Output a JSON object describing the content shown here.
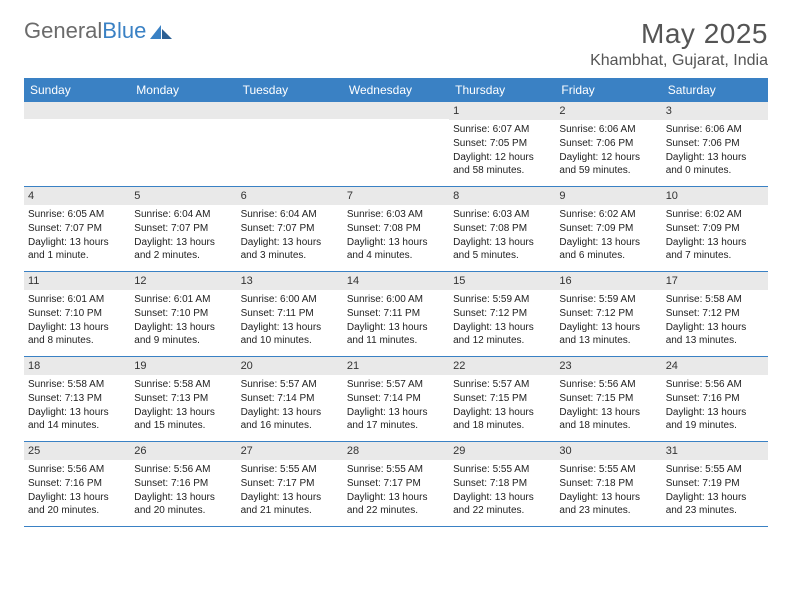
{
  "brand": {
    "part1": "General",
    "part2": "Blue"
  },
  "title": "May 2025",
  "location": "Khambhat, Gujarat, India",
  "colors": {
    "header_bg": "#3a81c4",
    "daynum_bg": "#e9e9e9",
    "rule": "#3a81c4",
    "text": "#222222",
    "title": "#555555"
  },
  "day_names": [
    "Sunday",
    "Monday",
    "Tuesday",
    "Wednesday",
    "Thursday",
    "Friday",
    "Saturday"
  ],
  "weeks": [
    [
      {
        "n": "",
        "sr": "",
        "ss": "",
        "dl": ""
      },
      {
        "n": "",
        "sr": "",
        "ss": "",
        "dl": ""
      },
      {
        "n": "",
        "sr": "",
        "ss": "",
        "dl": ""
      },
      {
        "n": "",
        "sr": "",
        "ss": "",
        "dl": ""
      },
      {
        "n": "1",
        "sr": "Sunrise: 6:07 AM",
        "ss": "Sunset: 7:05 PM",
        "dl": "Daylight: 12 hours and 58 minutes."
      },
      {
        "n": "2",
        "sr": "Sunrise: 6:06 AM",
        "ss": "Sunset: 7:06 PM",
        "dl": "Daylight: 12 hours and 59 minutes."
      },
      {
        "n": "3",
        "sr": "Sunrise: 6:06 AM",
        "ss": "Sunset: 7:06 PM",
        "dl": "Daylight: 13 hours and 0 minutes."
      }
    ],
    [
      {
        "n": "4",
        "sr": "Sunrise: 6:05 AM",
        "ss": "Sunset: 7:07 PM",
        "dl": "Daylight: 13 hours and 1 minute."
      },
      {
        "n": "5",
        "sr": "Sunrise: 6:04 AM",
        "ss": "Sunset: 7:07 PM",
        "dl": "Daylight: 13 hours and 2 minutes."
      },
      {
        "n": "6",
        "sr": "Sunrise: 6:04 AM",
        "ss": "Sunset: 7:07 PM",
        "dl": "Daylight: 13 hours and 3 minutes."
      },
      {
        "n": "7",
        "sr": "Sunrise: 6:03 AM",
        "ss": "Sunset: 7:08 PM",
        "dl": "Daylight: 13 hours and 4 minutes."
      },
      {
        "n": "8",
        "sr": "Sunrise: 6:03 AM",
        "ss": "Sunset: 7:08 PM",
        "dl": "Daylight: 13 hours and 5 minutes."
      },
      {
        "n": "9",
        "sr": "Sunrise: 6:02 AM",
        "ss": "Sunset: 7:09 PM",
        "dl": "Daylight: 13 hours and 6 minutes."
      },
      {
        "n": "10",
        "sr": "Sunrise: 6:02 AM",
        "ss": "Sunset: 7:09 PM",
        "dl": "Daylight: 13 hours and 7 minutes."
      }
    ],
    [
      {
        "n": "11",
        "sr": "Sunrise: 6:01 AM",
        "ss": "Sunset: 7:10 PM",
        "dl": "Daylight: 13 hours and 8 minutes."
      },
      {
        "n": "12",
        "sr": "Sunrise: 6:01 AM",
        "ss": "Sunset: 7:10 PM",
        "dl": "Daylight: 13 hours and 9 minutes."
      },
      {
        "n": "13",
        "sr": "Sunrise: 6:00 AM",
        "ss": "Sunset: 7:11 PM",
        "dl": "Daylight: 13 hours and 10 minutes."
      },
      {
        "n": "14",
        "sr": "Sunrise: 6:00 AM",
        "ss": "Sunset: 7:11 PM",
        "dl": "Daylight: 13 hours and 11 minutes."
      },
      {
        "n": "15",
        "sr": "Sunrise: 5:59 AM",
        "ss": "Sunset: 7:12 PM",
        "dl": "Daylight: 13 hours and 12 minutes."
      },
      {
        "n": "16",
        "sr": "Sunrise: 5:59 AM",
        "ss": "Sunset: 7:12 PM",
        "dl": "Daylight: 13 hours and 13 minutes."
      },
      {
        "n": "17",
        "sr": "Sunrise: 5:58 AM",
        "ss": "Sunset: 7:12 PM",
        "dl": "Daylight: 13 hours and 13 minutes."
      }
    ],
    [
      {
        "n": "18",
        "sr": "Sunrise: 5:58 AM",
        "ss": "Sunset: 7:13 PM",
        "dl": "Daylight: 13 hours and 14 minutes."
      },
      {
        "n": "19",
        "sr": "Sunrise: 5:58 AM",
        "ss": "Sunset: 7:13 PM",
        "dl": "Daylight: 13 hours and 15 minutes."
      },
      {
        "n": "20",
        "sr": "Sunrise: 5:57 AM",
        "ss": "Sunset: 7:14 PM",
        "dl": "Daylight: 13 hours and 16 minutes."
      },
      {
        "n": "21",
        "sr": "Sunrise: 5:57 AM",
        "ss": "Sunset: 7:14 PM",
        "dl": "Daylight: 13 hours and 17 minutes."
      },
      {
        "n": "22",
        "sr": "Sunrise: 5:57 AM",
        "ss": "Sunset: 7:15 PM",
        "dl": "Daylight: 13 hours and 18 minutes."
      },
      {
        "n": "23",
        "sr": "Sunrise: 5:56 AM",
        "ss": "Sunset: 7:15 PM",
        "dl": "Daylight: 13 hours and 18 minutes."
      },
      {
        "n": "24",
        "sr": "Sunrise: 5:56 AM",
        "ss": "Sunset: 7:16 PM",
        "dl": "Daylight: 13 hours and 19 minutes."
      }
    ],
    [
      {
        "n": "25",
        "sr": "Sunrise: 5:56 AM",
        "ss": "Sunset: 7:16 PM",
        "dl": "Daylight: 13 hours and 20 minutes."
      },
      {
        "n": "26",
        "sr": "Sunrise: 5:56 AM",
        "ss": "Sunset: 7:16 PM",
        "dl": "Daylight: 13 hours and 20 minutes."
      },
      {
        "n": "27",
        "sr": "Sunrise: 5:55 AM",
        "ss": "Sunset: 7:17 PM",
        "dl": "Daylight: 13 hours and 21 minutes."
      },
      {
        "n": "28",
        "sr": "Sunrise: 5:55 AM",
        "ss": "Sunset: 7:17 PM",
        "dl": "Daylight: 13 hours and 22 minutes."
      },
      {
        "n": "29",
        "sr": "Sunrise: 5:55 AM",
        "ss": "Sunset: 7:18 PM",
        "dl": "Daylight: 13 hours and 22 minutes."
      },
      {
        "n": "30",
        "sr": "Sunrise: 5:55 AM",
        "ss": "Sunset: 7:18 PM",
        "dl": "Daylight: 13 hours and 23 minutes."
      },
      {
        "n": "31",
        "sr": "Sunrise: 5:55 AM",
        "ss": "Sunset: 7:19 PM",
        "dl": "Daylight: 13 hours and 23 minutes."
      }
    ]
  ]
}
